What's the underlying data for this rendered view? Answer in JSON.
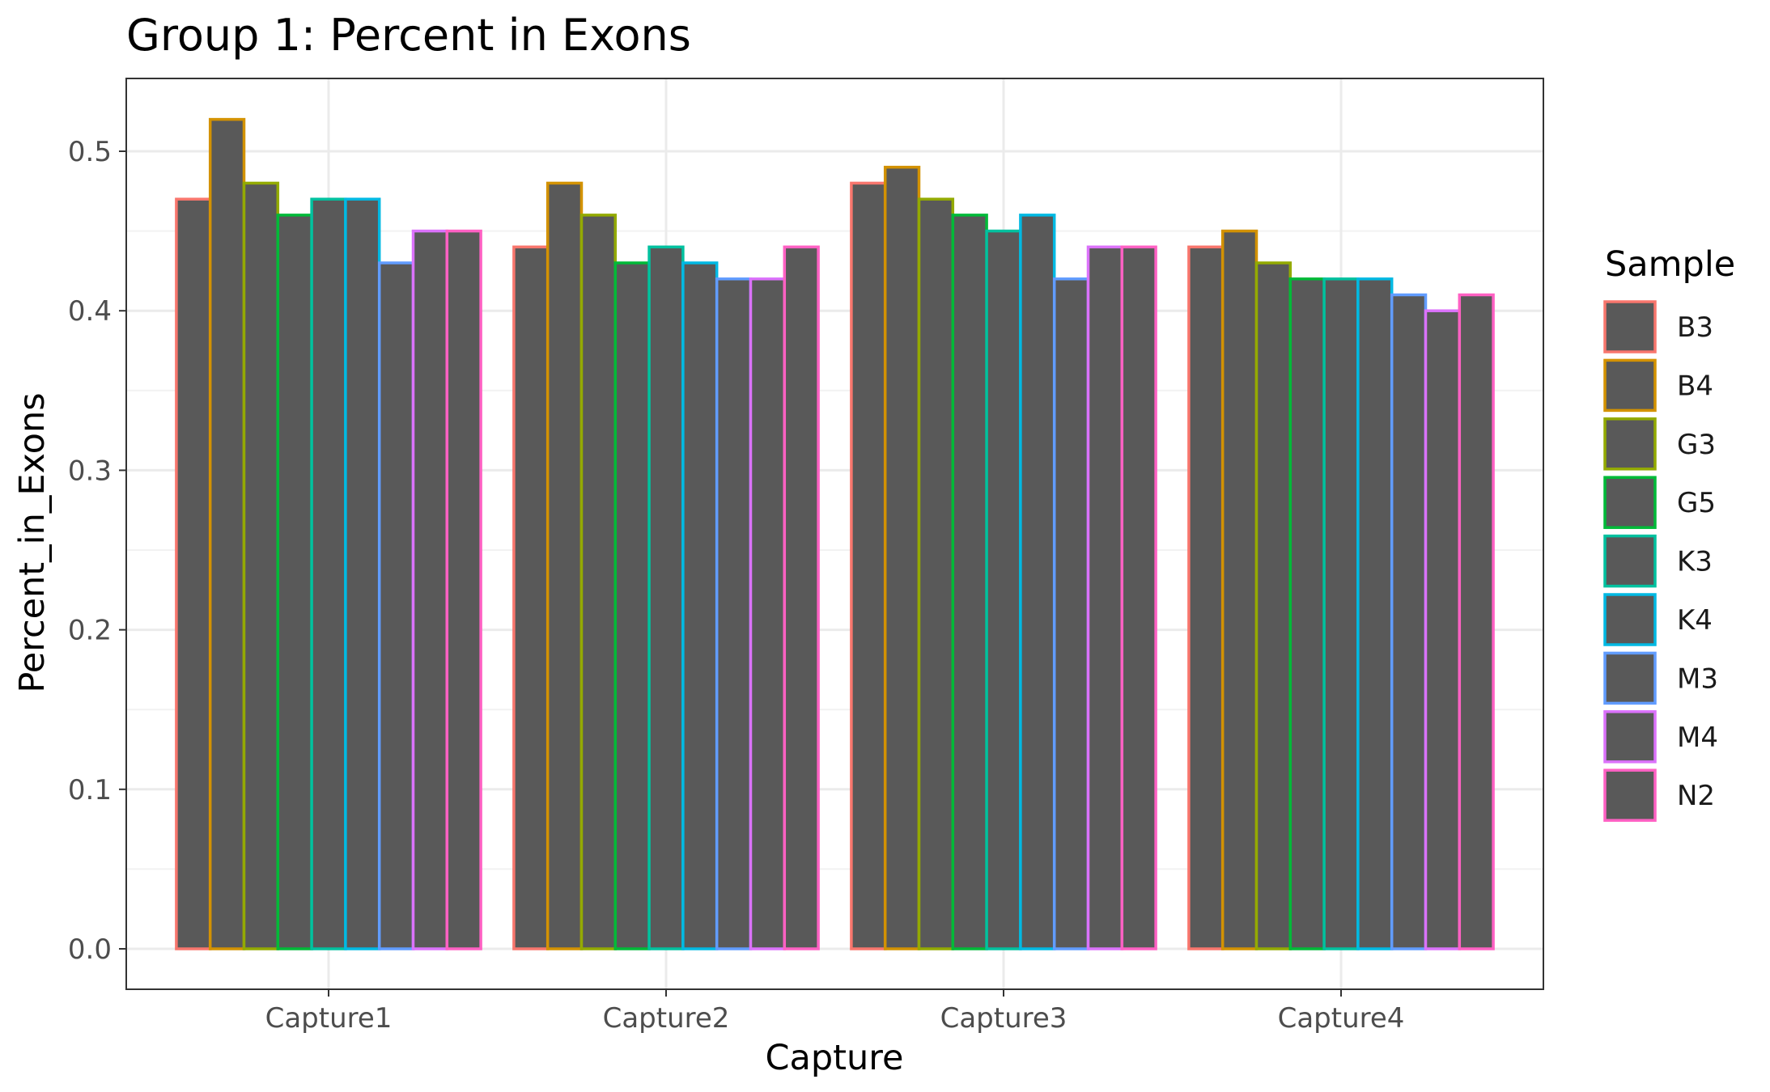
{
  "chart_data": {
    "type": "bar",
    "title": "Group 1: Percent in Exons",
    "xlabel": "Capture",
    "ylabel": "Percent_in_Exons",
    "ylim": [
      -0.025,
      0.546
    ],
    "yticks": [
      0.0,
      0.1,
      0.2,
      0.3,
      0.4,
      0.5
    ],
    "ytick_labels": [
      "0.0",
      "0.1",
      "0.2",
      "0.3",
      "0.4",
      "0.5"
    ],
    "grid": true,
    "bar_fill": "#595959",
    "categories": [
      "Capture1",
      "Capture2",
      "Capture3",
      "Capture4"
    ],
    "legend": {
      "title": "Sample",
      "placement": "right"
    },
    "series": [
      {
        "name": "B3",
        "color": "#F8766D",
        "values": [
          0.47,
          0.44,
          0.48,
          0.44
        ]
      },
      {
        "name": "B4",
        "color": "#D39200",
        "values": [
          0.52,
          0.48,
          0.49,
          0.45
        ]
      },
      {
        "name": "G3",
        "color": "#93AA00",
        "values": [
          0.48,
          0.46,
          0.47,
          0.43
        ]
      },
      {
        "name": "G5",
        "color": "#00BA38",
        "values": [
          0.46,
          0.43,
          0.46,
          0.42
        ]
      },
      {
        "name": "K3",
        "color": "#00C19F",
        "values": [
          0.47,
          0.44,
          0.45,
          0.42
        ]
      },
      {
        "name": "K4",
        "color": "#00B9E3",
        "values": [
          0.47,
          0.43,
          0.46,
          0.42
        ]
      },
      {
        "name": "M3",
        "color": "#619CFF",
        "values": [
          0.43,
          0.42,
          0.42,
          0.41
        ]
      },
      {
        "name": "M4",
        "color": "#DB72FB",
        "values": [
          0.45,
          0.42,
          0.44,
          0.4
        ]
      },
      {
        "name": "N2",
        "color": "#FF61C3",
        "values": [
          0.45,
          0.44,
          0.44,
          0.41
        ]
      }
    ]
  }
}
